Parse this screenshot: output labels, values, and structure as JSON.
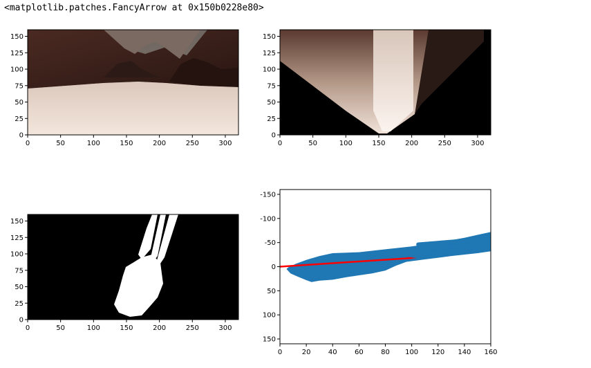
{
  "output_text": "<matplotlib.patches.FancyArrow at 0x150b0228e80>",
  "colors": {
    "scatter": "#1f77b4",
    "arrow": "#ff0000",
    "threshold_fg": "#ffffff",
    "threshold_bg": "#000000"
  },
  "chart_data": [
    {
      "type": "image",
      "content": "rover camera view: rocky terrain with light sandy ground",
      "xticks": [
        "0",
        "50",
        "100",
        "150",
        "200",
        "250",
        "300"
      ],
      "yticks": [
        "0",
        "25",
        "50",
        "75",
        "100",
        "125",
        "150"
      ],
      "xlim": [
        0,
        320
      ],
      "ylim": [
        160,
        0
      ]
    },
    {
      "type": "image",
      "content": "perspective-warped top-down view of ground (V shape)",
      "xticks": [
        "0",
        "50",
        "100",
        "150",
        "200",
        "250",
        "300"
      ],
      "yticks": [
        "0",
        "25",
        "50",
        "75",
        "100",
        "125",
        "150"
      ],
      "xlim": [
        0,
        320
      ],
      "ylim": [
        160,
        0
      ]
    },
    {
      "type": "image",
      "content": "color-thresholded navigable terrain (white on black)",
      "xticks": [
        "0",
        "50",
        "100",
        "150",
        "200",
        "250",
        "300"
      ],
      "yticks": [
        "0",
        "25",
        "50",
        "75",
        "100",
        "125",
        "150"
      ],
      "xlim": [
        0,
        320
      ],
      "ylim": [
        160,
        0
      ]
    },
    {
      "type": "scatter",
      "xlim": [
        0,
        160
      ],
      "ylim": [
        -160,
        160
      ],
      "xticks": [
        "0",
        "20",
        "40",
        "60",
        "80",
        "100",
        "120",
        "140",
        "160"
      ],
      "yticks": [
        "150",
        "100",
        "50",
        "0",
        "-50",
        "-100",
        "-150"
      ],
      "point_cloud_outline": [
        [
          5,
          5
        ],
        [
          8,
          14
        ],
        [
          13,
          20
        ],
        [
          20,
          28
        ],
        [
          24,
          32
        ],
        [
          30,
          29
        ],
        [
          40,
          27
        ],
        [
          50,
          22
        ],
        [
          60,
          18
        ],
        [
          70,
          14
        ],
        [
          80,
          8
        ],
        [
          84,
          3
        ],
        [
          88,
          -2
        ],
        [
          96,
          -10
        ],
        [
          110,
          -15
        ],
        [
          130,
          -22
        ],
        [
          150,
          -28
        ],
        [
          160,
          -32
        ],
        [
          160,
          -72
        ],
        [
          150,
          -66
        ],
        [
          140,
          -60
        ],
        [
          120,
          -50
        ],
        [
          100,
          -42
        ],
        [
          80,
          -36
        ],
        [
          60,
          -30
        ],
        [
          40,
          -28
        ],
        [
          30,
          -22
        ],
        [
          20,
          -14
        ],
        [
          12,
          -6
        ],
        [
          6,
          2
        ]
      ],
      "arrow": {
        "x_start": 0,
        "y_start": 0,
        "x_end": 100,
        "y_end": -18
      },
      "arrow_head_points": [
        [
          98,
          -16
        ],
        [
          104,
          -18
        ],
        [
          100,
          -19
        ],
        [
          97,
          -20
        ]
      ]
    }
  ]
}
